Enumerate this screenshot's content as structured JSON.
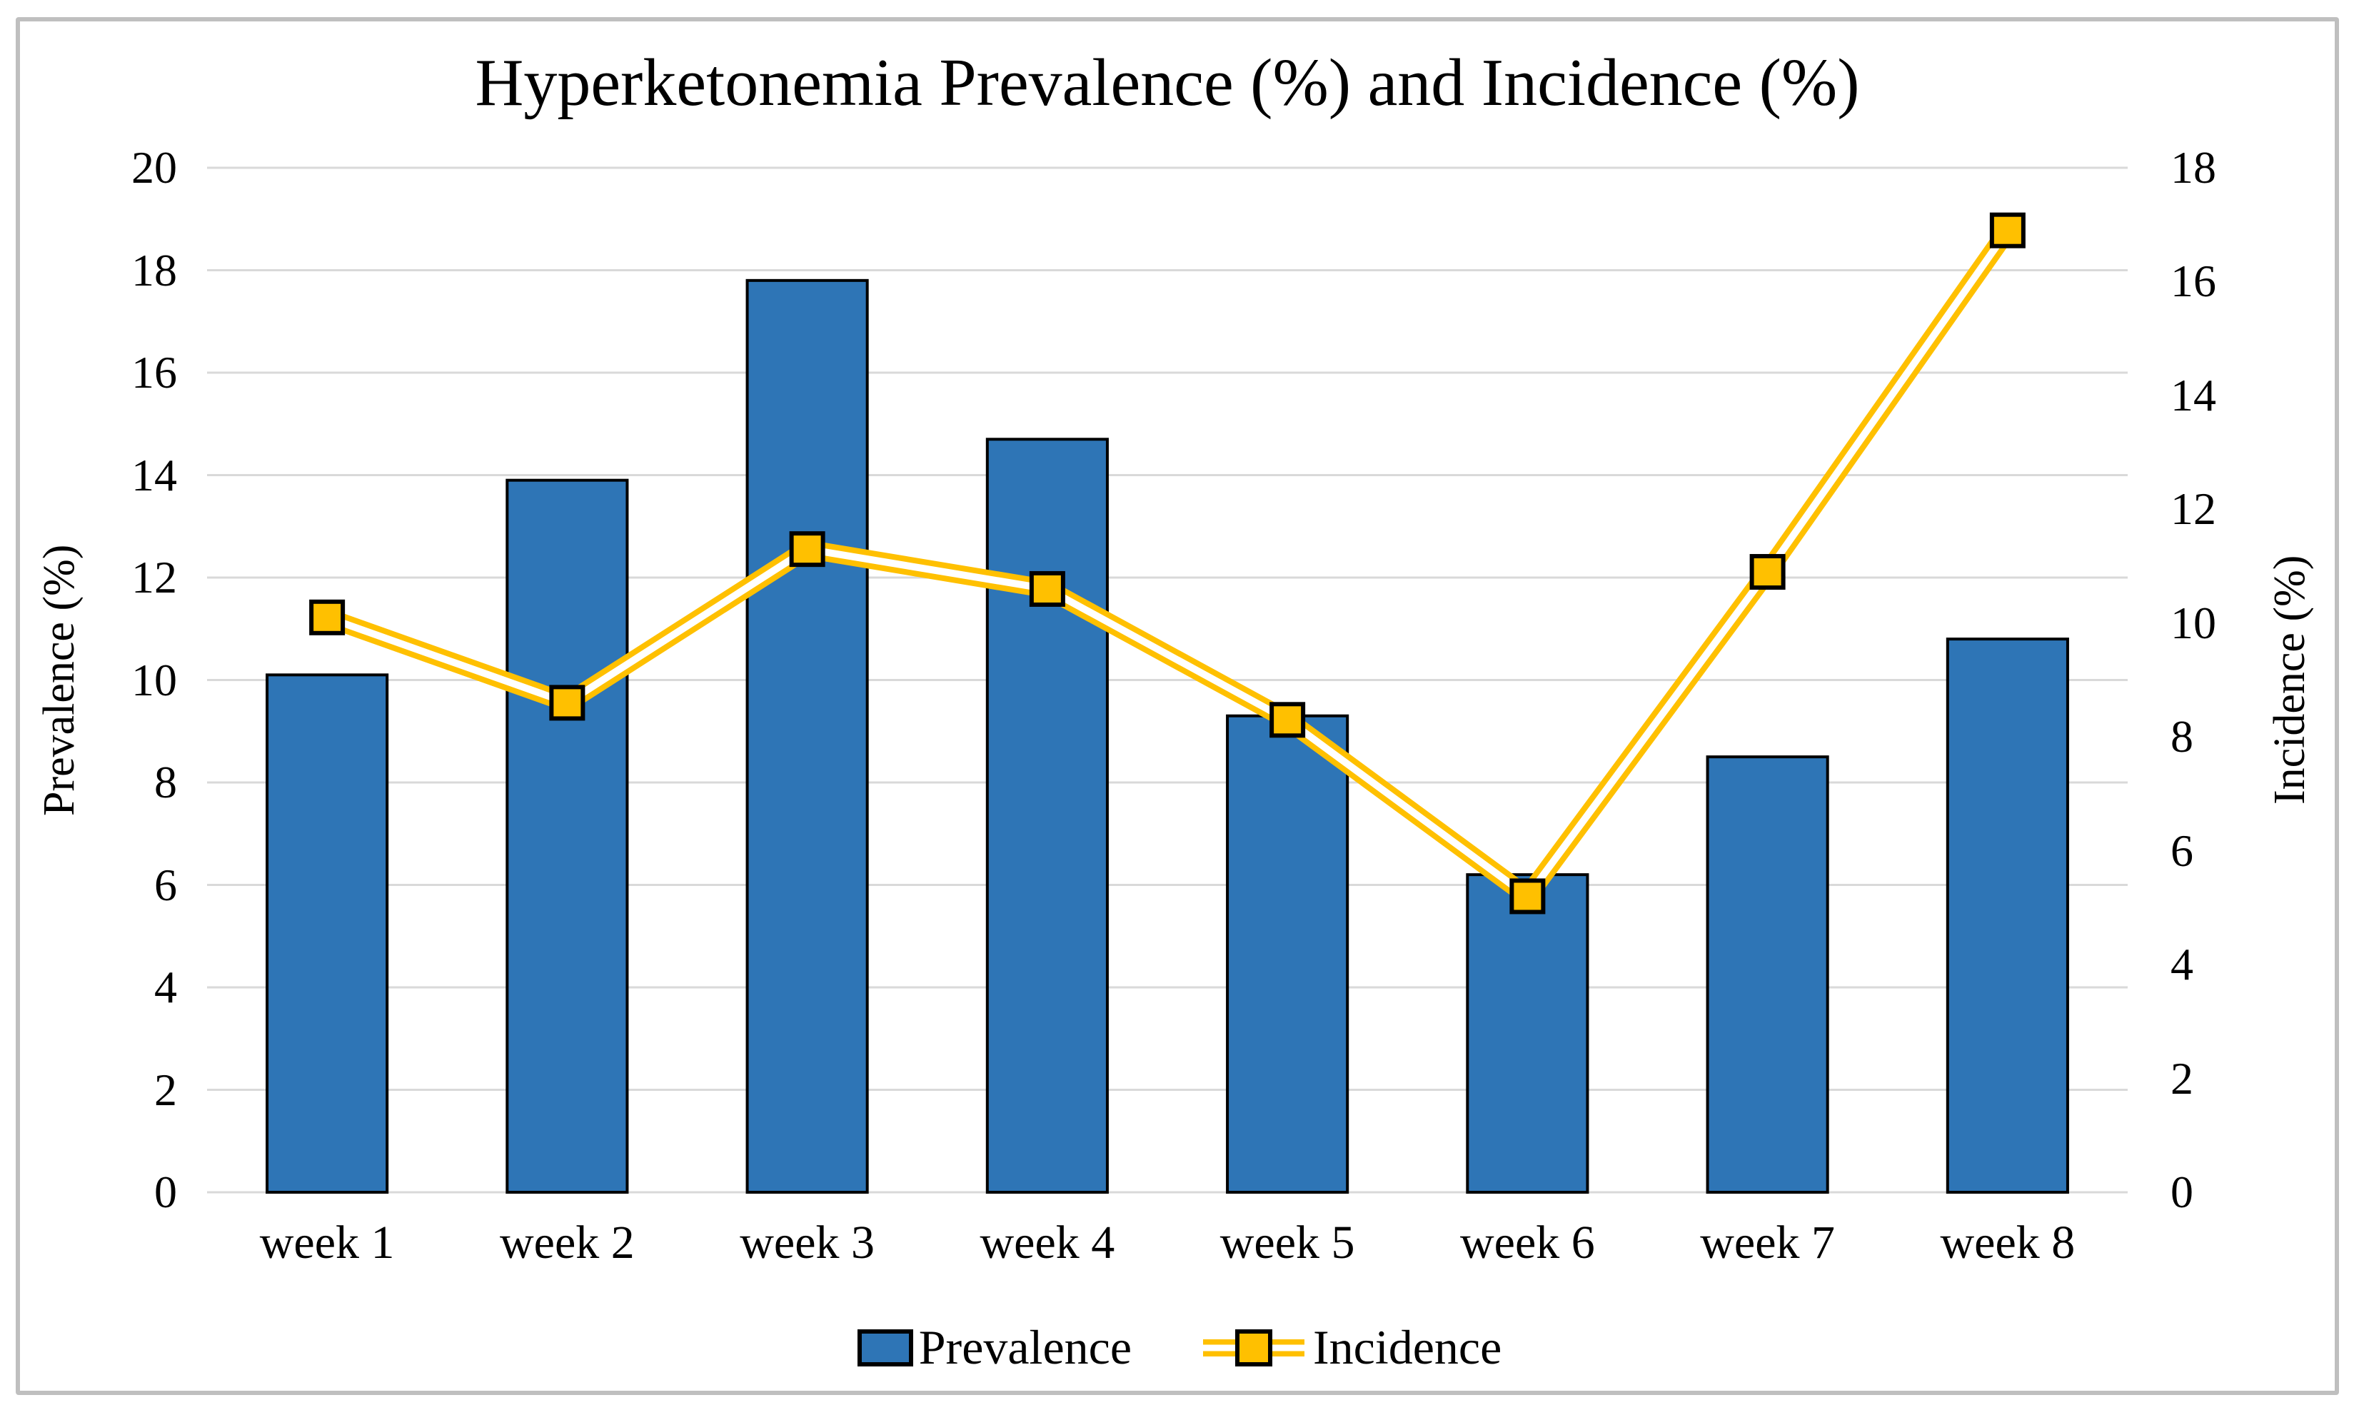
{
  "chart_data": {
    "type": "bar+line combo (dual axis)",
    "title": "Hyperketonemia Prevalence (%) and Incidence (%)",
    "categories": [
      "week 1",
      "week 2",
      "week 3",
      "week 4",
      "week 5",
      "week 6",
      "week 7",
      "week 8"
    ],
    "series": [
      {
        "name": "Prevalence",
        "type": "bar",
        "axis": "left",
        "color": "#2E75B6",
        "border_color": "#000000",
        "values": [
          10.1,
          13.9,
          17.8,
          14.7,
          9.3,
          6.2,
          8.5,
          10.8
        ]
      },
      {
        "name": "Incidence",
        "type": "line",
        "axis": "right",
        "color": "#FFC000",
        "line_style": "double (gold with white core)",
        "marker": "square, gold fill, black border",
        "values": [
          10.1,
          8.6,
          11.3,
          10.6,
          8.3,
          5.2,
          10.9,
          16.9
        ]
      }
    ],
    "left_axis": {
      "label": "Prevalence (%)",
      "min": 0,
      "max": 20,
      "tick_step": 2,
      "ticks": [
        20,
        18,
        16,
        14,
        12,
        10,
        8,
        6,
        4,
        2,
        0
      ]
    },
    "right_axis": {
      "label": "Incidence (%)",
      "min": 0,
      "max": 18,
      "tick_step": 2,
      "ticks": [
        18,
        16,
        14,
        12,
        10,
        8,
        6,
        4,
        2,
        0
      ]
    },
    "grid": {
      "horizontal": true,
      "vertical": false,
      "color": "#D9D9D9"
    },
    "legend": {
      "position": "bottom-center"
    },
    "colors": {
      "bar_fill": "#2E75B6",
      "bar_border": "#000000",
      "line_gold": "#FFC000",
      "line_core": "#FFFFFF",
      "marker_fill": "#FFC000",
      "marker_border": "#000000",
      "gridline": "#D9D9D9",
      "figure_border": "#BFBFBF",
      "background": "#FFFFFF",
      "text": "#000000"
    }
  }
}
